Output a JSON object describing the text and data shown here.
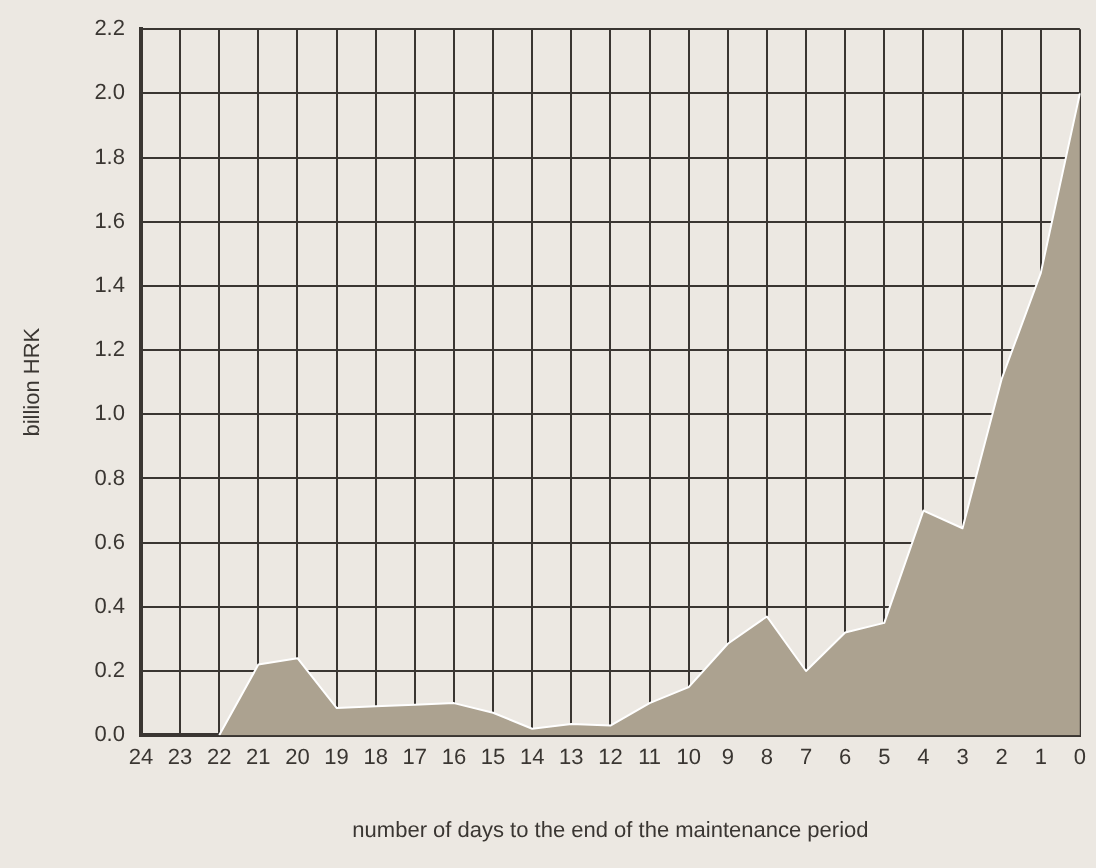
{
  "chart_data": {
    "type": "area",
    "xlabel": "number of days to the end of the maintenance period",
    "ylabel": "billion HRK",
    "categories": [
      "24",
      "23",
      "22",
      "21",
      "20",
      "19",
      "18",
      "17",
      "16",
      "15",
      "14",
      "13",
      "12",
      "11",
      "10",
      "9",
      "8",
      "7",
      "6",
      "5",
      "4",
      "3",
      "2",
      "1",
      "0"
    ],
    "series": [
      {
        "color": "#aca290",
        "values": [
          null,
          null,
          0,
          0.22,
          0.24,
          0.085,
          0.09,
          0.095,
          0.1,
          0.07,
          0.02,
          0.035,
          0.03,
          0.1,
          0.15,
          0.285,
          0.37,
          0.2,
          0.32,
          0.35,
          0.7,
          0.645,
          1.11,
          1.44,
          2.0
        ]
      }
    ],
    "ylim": [
      0,
      2.2
    ],
    "yticks": [
      {
        "value": 0,
        "label": "0.0"
      },
      {
        "value": 0.2,
        "label": "0.2"
      },
      {
        "value": 0.4,
        "label": "0.4"
      },
      {
        "value": 0.6,
        "label": "0.6"
      },
      {
        "value": 0.8,
        "label": "0.8"
      },
      {
        "value": 1,
        "label": "1.0"
      },
      {
        "value": 1.2,
        "label": "1.2"
      },
      {
        "value": 1.4,
        "label": "1.4"
      },
      {
        "value": 1.6,
        "label": "1.6"
      },
      {
        "value": 1.8,
        "label": "1.8"
      },
      {
        "value": 2,
        "label": "2.0"
      },
      {
        "value": 2.2,
        "label": "2.2"
      }
    ],
    "grid": true,
    "legend": false
  }
}
